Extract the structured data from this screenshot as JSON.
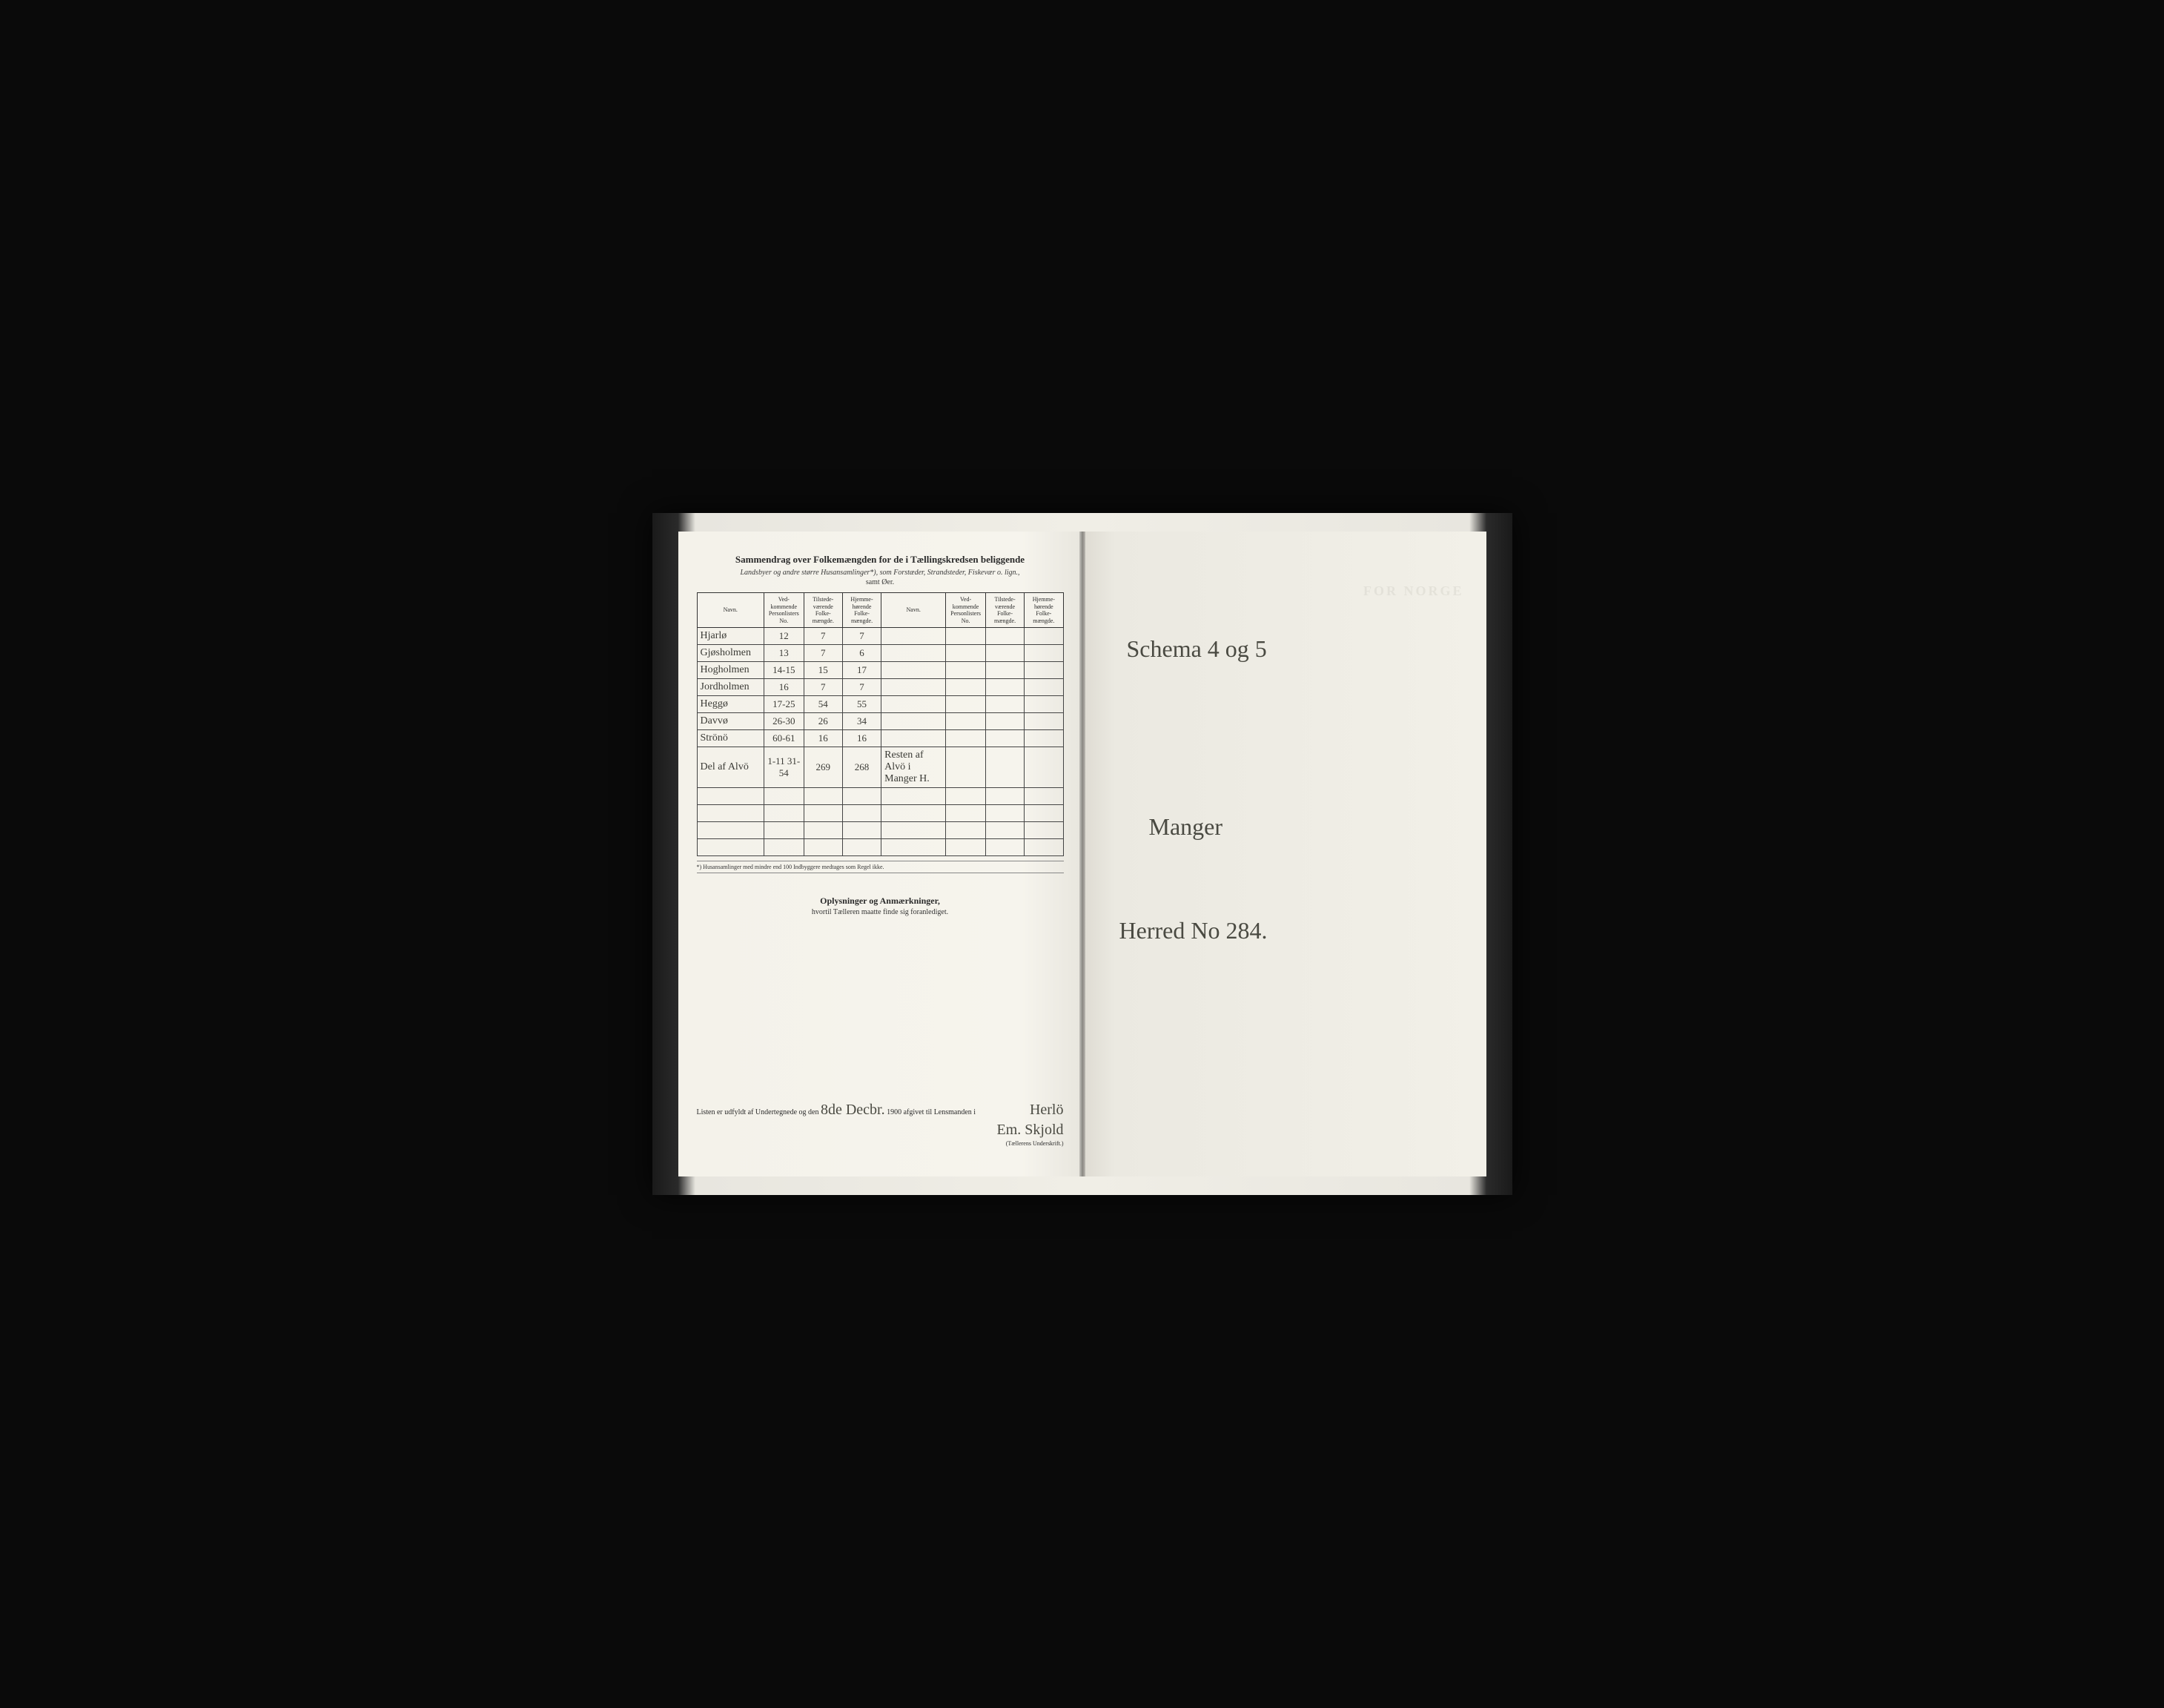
{
  "leftPage": {
    "title": "Sammendrag over Folkemængden for de i Tællingskredsen beliggende",
    "subtitle1": "Landsbyer og andre større Husansamlinger*), som Forstæder, Strandsteder, Fiskevær o. lign.,",
    "subtitle2": "samt Øer.",
    "headers": {
      "navn": "Navn.",
      "vedkommende": "Ved-\nkommende\nPersonlisters\nNo.",
      "tilstede": "Tilstede-\nværende\nFolke-\nmængde.",
      "hjemme": "Hjemme-\nhørende\nFolke-\nmængde."
    },
    "rows": [
      {
        "navn": "Hjarlø",
        "no": "12",
        "tilstede": "7",
        "hjemme": "7",
        "navn2": "",
        "no2": "",
        "tilstede2": "",
        "hjemme2": ""
      },
      {
        "navn": "Gjøsholmen",
        "no": "13",
        "tilstede": "7",
        "hjemme": "6",
        "navn2": "",
        "no2": "",
        "tilstede2": "",
        "hjemme2": ""
      },
      {
        "navn": "Hogholmen",
        "no": "14-15",
        "tilstede": "15",
        "hjemme": "17",
        "navn2": "",
        "no2": "",
        "tilstede2": "",
        "hjemme2": ""
      },
      {
        "navn": "Jordholmen",
        "no": "16",
        "tilstede": "7",
        "hjemme": "7",
        "navn2": "",
        "no2": "",
        "tilstede2": "",
        "hjemme2": ""
      },
      {
        "navn": "Heggø",
        "no": "17-25",
        "tilstede": "54",
        "hjemme": "55",
        "navn2": "",
        "no2": "",
        "tilstede2": "",
        "hjemme2": ""
      },
      {
        "navn": "Davvø",
        "no": "26-30",
        "tilstede": "26",
        "hjemme": "34",
        "navn2": "",
        "no2": "",
        "tilstede2": "",
        "hjemme2": ""
      },
      {
        "navn": "Strönö",
        "no": "60-61",
        "tilstede": "16",
        "hjemme": "16",
        "navn2": "",
        "no2": "",
        "tilstede2": "",
        "hjemme2": ""
      },
      {
        "navn": "Del af Alvö",
        "no": "1-11\n31-54",
        "tilstede": "269",
        "hjemme": "268",
        "navn2": "Resten af Alvö i Manger H.",
        "no2": "",
        "tilstede2": "",
        "hjemme2": ""
      }
    ],
    "emptyRows": 4,
    "footnote": "*) Husansamlinger med mindre end 100 Indbyggere medtages som Regel ikke.",
    "sectionTitle": "Oplysninger og Anmærkninger,",
    "sectionSub": "hvortil Tælleren maatte finde sig foranlediget.",
    "bottomText1": "Listen er udfyldt af Undertegnede og den",
    "bottomDate": "8de Decbr.",
    "bottomYear": "1900",
    "bottomText2": " afgivet til Lensmanden i",
    "bottomPlace": "Herlö",
    "signature": "Em. Skjold",
    "sigLabel": "(Tællerens Underskrift.)"
  },
  "rightPage": {
    "fadedText": "FOR NORGE",
    "handwriting1": "Schema 4 og 5",
    "handwriting2": "Manger",
    "handwriting3": "Herred No 284."
  },
  "colors": {
    "paper": "#f5f3ec",
    "ink": "#2a2a2a",
    "handwriting": "#4a4a42",
    "border": "#333333"
  }
}
